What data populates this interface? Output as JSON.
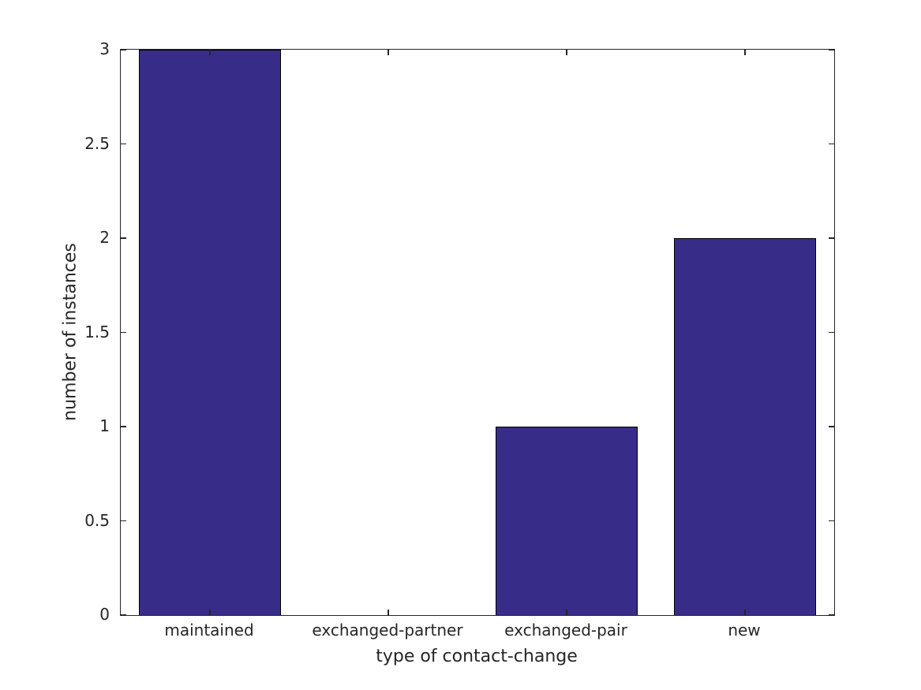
{
  "chart_data": {
    "type": "bar",
    "categories": [
      "maintained",
      "exchanged-partner",
      "exchanged-pair",
      "new"
    ],
    "values": [
      3,
      0,
      1,
      2
    ],
    "title": "",
    "xlabel": "type of contact-change",
    "ylabel": "number of instances",
    "ylim": [
      0,
      3
    ],
    "yticks": [
      0,
      0.5,
      1,
      1.5,
      2,
      2.5,
      3
    ],
    "ytick_labels": [
      "0",
      "0.5",
      "1",
      "1.5",
      "2",
      "2.5",
      "3"
    ],
    "bar_width_frac": 0.8,
    "bar_color": "#382c89",
    "bar_edge_color": "#000000",
    "axis_color": "#262626",
    "text_color": "#262626",
    "background": "#ffffff",
    "grid": false,
    "legend_position": "none"
  }
}
